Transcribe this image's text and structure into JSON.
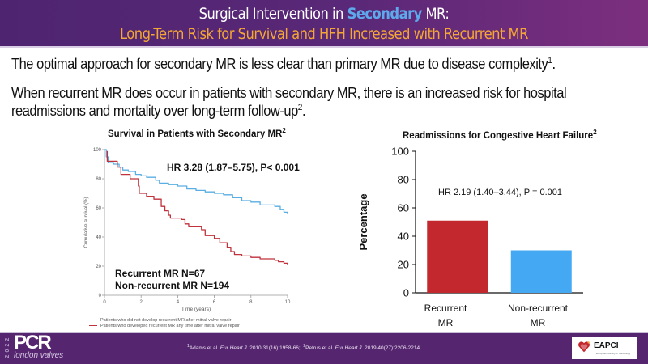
{
  "header": {
    "title_line1_pre": "Surgical Intervention in ",
    "title_line1_accent": "Secondary",
    "title_line1_post": " MR:",
    "title_line2": "Long-Term Risk for Survival and HFH Increased with Recurrent MR",
    "accent_color": "#5ea8ec",
    "subtitle_color": "#f4a734"
  },
  "body": {
    "paragraph1": "The optimal approach for secondary MR is less clear than primary MR due to disease complexity",
    "paragraph1_sup": "1",
    "paragraph1_end": ".",
    "paragraph2": "When recurrent MR does occur in patients with secondary MR, there is an increased risk for hospital readmissions and mortality over long-term follow-up",
    "paragraph2_sup": "2",
    "paragraph2_end": "."
  },
  "chart_data": [
    {
      "type": "line",
      "title": "Survival in Patients with Secondary MR",
      "title_sup": "2",
      "xlabel": "Time (years)",
      "ylabel": "Cumulative survival (%)",
      "xlim": [
        0,
        10
      ],
      "ylim": [
        0,
        100
      ],
      "x_ticks": [
        "0",
        "2",
        "4",
        "6",
        "8",
        "10"
      ],
      "y_ticks": [
        "0",
        "20",
        "40",
        "60",
        "80",
        "100"
      ],
      "grid": false,
      "annotation": "HR 3.28 (1.87–5.75),  P< 0.001",
      "n_labels": [
        "Recurrent MR N=67",
        "Non-recurrent MR N=194"
      ],
      "legend_position": "bottom",
      "series": [
        {
          "name": "Patients who did not develop recurrent MR after mitral valve repair",
          "color": "#5aaee3",
          "x": [
            0,
            0.1,
            0.2,
            0.5,
            0.8,
            1.0,
            1.3,
            1.7,
            2.0,
            2.3,
            2.8,
            3.0,
            3.5,
            4.0,
            4.5,
            5.0,
            5.5,
            6.0,
            6.5,
            7.0,
            7.5,
            8.0,
            8.5,
            9.0,
            9.3,
            9.6,
            9.8,
            10.0
          ],
          "y": [
            100,
            95,
            91,
            90,
            88,
            86,
            85,
            83,
            82,
            81,
            79,
            77,
            76,
            75,
            73,
            72,
            71,
            70,
            69,
            67,
            65,
            64,
            62,
            62,
            61,
            59,
            57,
            56
          ]
        },
        {
          "name": "Patients who developed recurrent MR any time after mitral valve repair",
          "color": "#c0323c",
          "x": [
            0.15,
            0.15,
            0.7,
            0.7,
            0.9,
            0.9,
            1.4,
            1.4,
            1.8,
            1.85,
            1.9,
            2.3,
            2.3,
            2.7,
            2.7,
            3.0,
            3.1,
            3.3,
            3.5,
            3.6,
            3.7,
            4.2,
            4.4,
            4.6,
            5.0,
            5.3,
            5.5,
            5.7,
            6.0,
            6.3,
            6.5,
            6.7,
            6.9,
            7.1,
            7.3,
            7.5,
            8.0,
            8.5,
            9.0,
            9.3,
            9.5,
            9.8,
            10.0
          ],
          "y": [
            99,
            92,
            92,
            88,
            88,
            83,
            83,
            80,
            80,
            75,
            70,
            70,
            68,
            68,
            66,
            66,
            61,
            58,
            55,
            53,
            53,
            52,
            49,
            47,
            47,
            45,
            41,
            41,
            39,
            36,
            36,
            33,
            30,
            28,
            28,
            27,
            26,
            25,
            25,
            24,
            23,
            22,
            21
          ]
        }
      ]
    },
    {
      "type": "bar",
      "title": "Readmissions for Congestive Heart Failure",
      "title_sup": "2",
      "xlabel": "",
      "ylabel": "Percentage",
      "ylim": [
        0,
        100
      ],
      "y_ticks": [
        "0",
        "20",
        "40",
        "60",
        "80",
        "100"
      ],
      "grid": false,
      "annotation": "HR 2.19 (1.40–3.44),  P = 0.001",
      "categories": [
        "Recurrent MR",
        "Non-recurrent MR"
      ],
      "category_lines": [
        [
          "Recurrent",
          "MR"
        ],
        [
          "Non-recurrent",
          "MR"
        ]
      ],
      "values": [
        51,
        30
      ],
      "colors": [
        "#c3282f",
        "#45a8f3"
      ]
    }
  ],
  "footer": {
    "logo_year": "2022",
    "logo_main": "PCR",
    "logo_sub": "london valves",
    "ref1_num": "1",
    "ref1_authors": "Adams et al. ",
    "ref1_journal": "Eur Heart J",
    "ref1_rest": ". 2010;31(16):1958-66;",
    "ref2_num": "2",
    "ref2_authors": "Petrus et al. ",
    "ref2_journal": "Eur Heart J",
    "ref2_rest": ". 2019;40(27):2206-2214.",
    "partner_logo": "EAPCI",
    "partner_sub": "European Society of Cardiology"
  }
}
